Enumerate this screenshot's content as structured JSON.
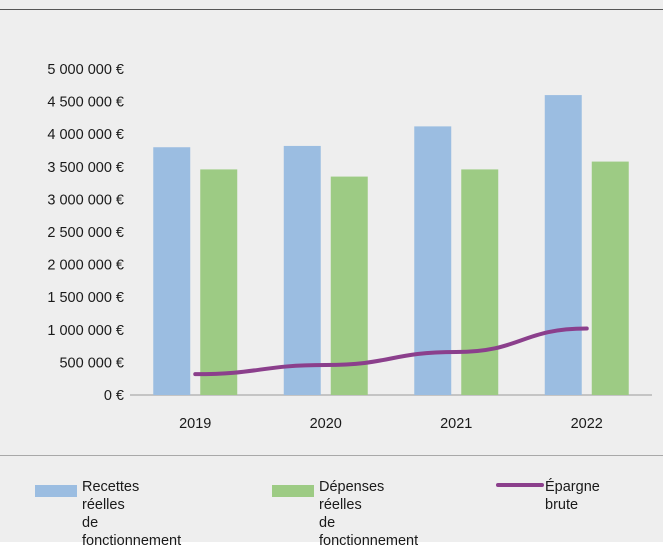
{
  "chart_data": {
    "type": "bar",
    "categories": [
      "2019",
      "2020",
      "2021",
      "2022"
    ],
    "series": [
      {
        "name": "Recettes réelles\nde fonctionnement",
        "kind": "bar",
        "color": "#9bbde1",
        "values": [
          3800000,
          3820000,
          4120000,
          4600000
        ]
      },
      {
        "name": "Dépenses réelles\nde fonctionnement",
        "kind": "bar",
        "color": "#9dcb84",
        "values": [
          3460000,
          3350000,
          3460000,
          3580000
        ]
      },
      {
        "name": "Épargne brute",
        "kind": "line",
        "color": "#8b3f8c",
        "values": [
          320000,
          460000,
          660000,
          1020000
        ]
      }
    ],
    "ylim": [
      0,
      5000000
    ],
    "yticks": [
      0,
      500000,
      1000000,
      1500000,
      2000000,
      2500000,
      3000000,
      3500000,
      4000000,
      4500000,
      5000000
    ],
    "ytick_labels": [
      "0 €",
      "500 000 €",
      "1 000 000 €",
      "1 500 000 €",
      "2 000 000 €",
      "2 500 000 €",
      "3 000 000 €",
      "3 500 000 €",
      "4 000 000 €",
      "4 500 000 €",
      "5 000 000 €"
    ],
    "grid": false,
    "legend_position": "bottom"
  }
}
